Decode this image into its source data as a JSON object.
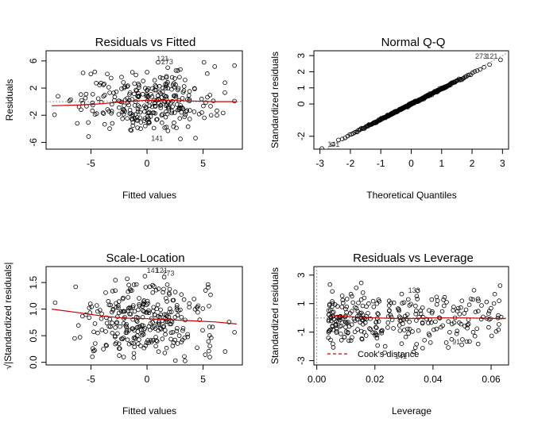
{
  "chart_data": [
    {
      "type": "scatter",
      "title": "Residuals vs Fitted",
      "xlabel": "Fitted values",
      "ylabel": "Residuals",
      "xlim": [
        -9.0,
        8.5
      ],
      "ylim": [
        -7.0,
        7.5
      ],
      "xticks": [
        -5,
        0,
        5
      ],
      "yticks": [
        -6,
        -2,
        2,
        6
      ],
      "reference_line": {
        "y": 0,
        "style": "dotted",
        "color": "#999999"
      },
      "smooth": {
        "color": "#cc0000",
        "x": [
          -8.5,
          -6,
          -4,
          -2,
          0,
          2,
          4,
          6,
          8
        ],
        "y": [
          -0.6,
          -0.5,
          -0.3,
          0.0,
          0.2,
          0.2,
          0.1,
          0.0,
          0.0
        ]
      },
      "annotations": [
        {
          "label": "141",
          "x": 0.9,
          "y": -5.8
        },
        {
          "label": "273",
          "x": 1.8,
          "y": 5.5
        },
        {
          "label": "121",
          "x": 1.4,
          "y": 6.0
        }
      ],
      "n_points": 300,
      "x_center": 0,
      "x_spread": 3.0,
      "y_spread": 2.2
    },
    {
      "type": "scatter",
      "title": "Normal Q-Q",
      "xlabel": "Theoretical Quantiles",
      "ylabel": "Standardized residuals",
      "xlim": [
        -3.2,
        3.2
      ],
      "ylim": [
        -2.8,
        3.3
      ],
      "xticks": [
        -3,
        -2,
        -1,
        0,
        1,
        2,
        3
      ],
      "yticks": [
        -2,
        0,
        1,
        2,
        3
      ],
      "reference_line": {
        "from": [
          -3.2,
          -3.2
        ],
        "to": [
          3.2,
          3.2
        ],
        "style": "dotted",
        "color": "#999999"
      },
      "annotations": [
        {
          "label": "141",
          "x": -2.55,
          "y": -2.65
        },
        {
          "label": "273",
          "x": 2.3,
          "y": 2.8
        },
        {
          "label": "121",
          "x": 2.65,
          "y": 2.8
        }
      ],
      "n_points": 300
    },
    {
      "type": "scatter",
      "title": "Scale-Location",
      "xlabel": "Fitted values",
      "ylabel": "√|Standardized residuals|",
      "xlim": [
        -9.0,
        8.5
      ],
      "ylim": [
        -0.05,
        1.8
      ],
      "xticks": [
        -5,
        0,
        5
      ],
      "yticks": [
        0.0,
        0.5,
        1.0,
        1.5
      ],
      "ytick_labels": [
        "0.0",
        "0.5",
        "1.0",
        "1.5"
      ],
      "smooth": {
        "color": "#cc0000",
        "x": [
          -8.5,
          -6,
          -4,
          -2,
          0,
          2,
          4,
          6,
          8
        ],
        "y": [
          1.0,
          0.93,
          0.87,
          0.83,
          0.82,
          0.8,
          0.78,
          0.76,
          0.72
        ]
      },
      "annotations": [
        {
          "label": "141",
          "x": 0.5,
          "y": 1.68
        },
        {
          "label": "121",
          "x": 1.3,
          "y": 1.68
        },
        {
          "label": "273",
          "x": 1.9,
          "y": 1.63
        }
      ],
      "n_points": 300,
      "x_center": 0,
      "x_spread": 3.0
    },
    {
      "type": "scatter",
      "title": "Residuals vs Leverage",
      "xlabel": "Leverage",
      "ylabel": "Standardized residuals",
      "xlim": [
        -0.001,
        0.066
      ],
      "ylim": [
        -3.3,
        3.6
      ],
      "xticks": [
        0.0,
        0.02,
        0.04,
        0.06
      ],
      "xtick_labels": [
        "0.00",
        "0.02",
        "0.04",
        "0.06"
      ],
      "yticks": [
        -3,
        -1,
        1,
        3
      ],
      "ytick_labels": [
        "-3",
        "-1",
        "1",
        "3"
      ],
      "reference_line": {
        "y": 0,
        "style": "dotted",
        "color": "#999999"
      },
      "vertical_line": {
        "x": 0,
        "style": "dotted",
        "color": "#999999"
      },
      "smooth": {
        "color": "#cc0000",
        "x": [
          0.005,
          0.01,
          0.02,
          0.03,
          0.04,
          0.05,
          0.065
        ],
        "y": [
          0.15,
          0.1,
          0.0,
          -0.05,
          0.0,
          0.0,
          -0.05
        ]
      },
      "legend": {
        "label": "Cook's distance",
        "color": "#cc0000",
        "style": "dashed",
        "position": "bottom-left"
      },
      "annotations": [
        {
          "label": "133",
          "x": 0.0335,
          "y": 1.75
        },
        {
          "label": "141",
          "x": 0.029,
          "y": -2.85
        },
        {
          "label": "91",
          "x": 0.048,
          "y": -1.85
        }
      ],
      "n_points": 300
    }
  ]
}
